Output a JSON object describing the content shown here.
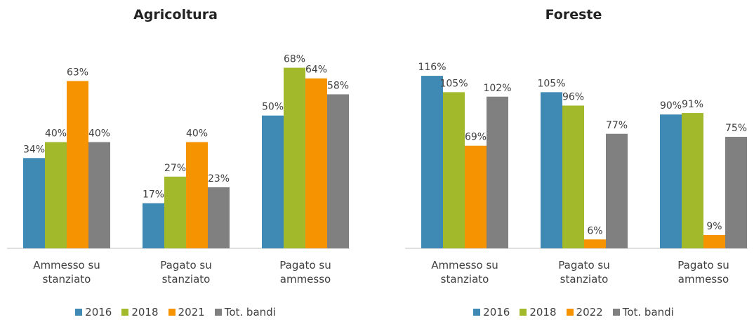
{
  "chart_data": [
    {
      "type": "bar",
      "title": "Agricoltura",
      "categories": [
        "Ammesso su stanziato",
        "Pagato su stanziato",
        "Pagato su ammesso"
      ],
      "ylim": [
        0,
        70
      ],
      "series": [
        {
          "name": "2016",
          "color": "#3f89b5",
          "values": [
            34,
            17,
            50
          ],
          "value_labels": [
            "34%",
            "17%",
            "50%"
          ]
        },
        {
          "name": "2018",
          "color": "#a2b92b",
          "values": [
            40,
            27,
            68
          ],
          "value_labels": [
            "40%",
            "27%",
            "68%"
          ]
        },
        {
          "name": "2021",
          "color": "#f59300",
          "values": [
            63,
            40,
            64
          ],
          "value_labels": [
            "63%",
            "40%",
            "64%"
          ]
        },
        {
          "name": "Tot. bandi",
          "color": "#808080",
          "values": [
            40,
            23,
            58
          ],
          "value_labels": [
            "40%",
            "23%",
            "58%"
          ]
        }
      ]
    },
    {
      "type": "bar",
      "title": "Foreste",
      "categories": [
        "Ammesso su stanziato",
        "Pagato su stanziato",
        "Pagato su ammesso"
      ],
      "ylim": [
        0,
        125
      ],
      "series": [
        {
          "name": "2016",
          "color": "#3f89b5",
          "values": [
            116,
            105,
            90
          ],
          "value_labels": [
            "116%",
            "105%",
            "90%"
          ]
        },
        {
          "name": "2018",
          "color": "#a2b92b",
          "values": [
            105,
            96,
            91
          ],
          "value_labels": [
            "105%",
            "96%",
            "91%"
          ]
        },
        {
          "name": "2022",
          "color": "#f59300",
          "values": [
            69,
            6,
            9
          ],
          "value_labels": [
            "69%",
            "6%",
            "9%"
          ]
        },
        {
          "name": "Tot. bandi",
          "color": "#808080",
          "values": [
            102,
            77,
            75
          ],
          "value_labels": [
            "102%",
            "77%",
            "75%"
          ]
        }
      ]
    }
  ]
}
